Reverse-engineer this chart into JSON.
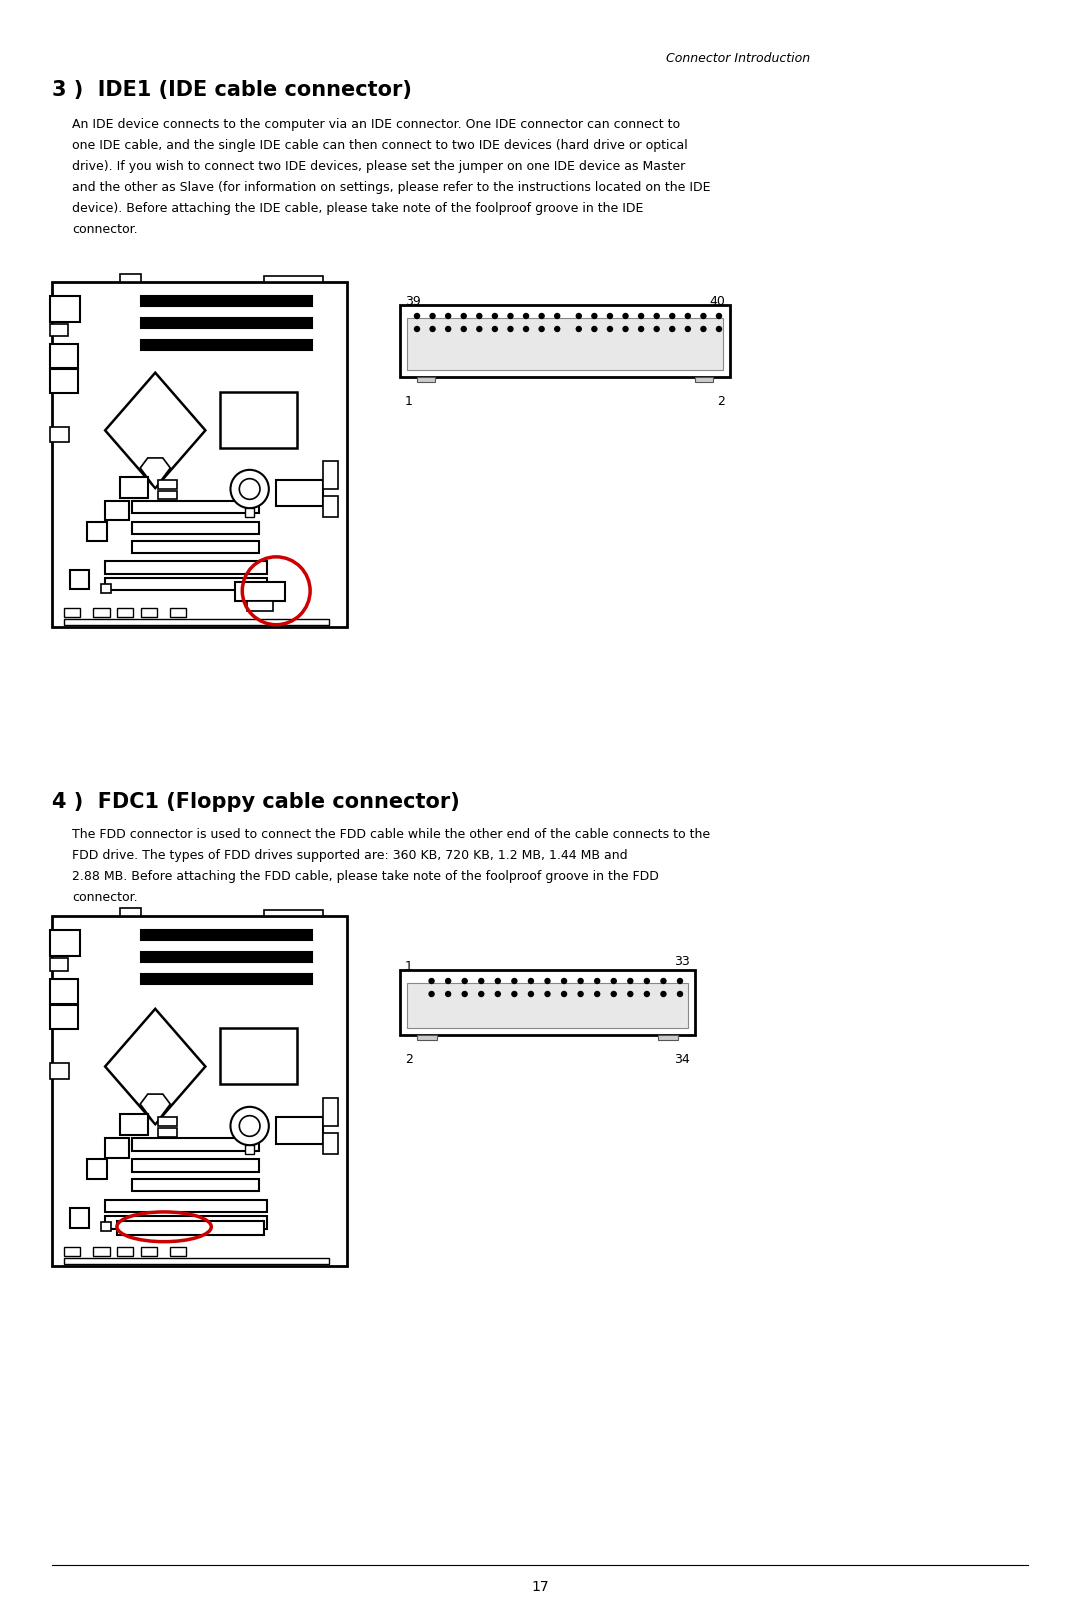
{
  "page_header": "Connector Introduction",
  "section1_title": "3 )  IDE1 (IDE cable connector)",
  "section1_body_lines": [
    "An IDE device connects to the computer via an IDE connector. One IDE connector can connect to",
    "one IDE cable, and the single IDE cable can then connect to two IDE devices (hard drive or optical",
    "drive). If you wish to connect two IDE devices, please set the jumper on one IDE device as Master",
    "and the other as Slave (for information on settings, please refer to the instructions located on the IDE",
    "device). Before attaching the IDE cable, please take note of the foolproof groove in the IDE",
    "connector."
  ],
  "ide_label_39": "39",
  "ide_label_40": "40",
  "ide_label_1": "1",
  "ide_label_2": "2",
  "section2_title": "4 )  FDC1 (Floppy cable connector)",
  "section2_body_lines": [
    "The FDD connector is used to connect the FDD cable while the other end of the cable connects to the",
    "FDD drive. The types of FDD drives supported are: 360 KB, 720 KB, 1.2 MB, 1.44 MB and",
    "2.88 MB. Before attaching the FDD cable, please take note of the foolproof groove in the FDD",
    "connector."
  ],
  "fdd_label_1": "1",
  "fdd_label_33": "33",
  "fdd_label_2": "2",
  "fdd_label_34": "34",
  "page_number": "17",
  "bg_color": "#ffffff",
  "text_color": "#000000",
  "red_color": "#cc0000",
  "line_color": "#000000"
}
